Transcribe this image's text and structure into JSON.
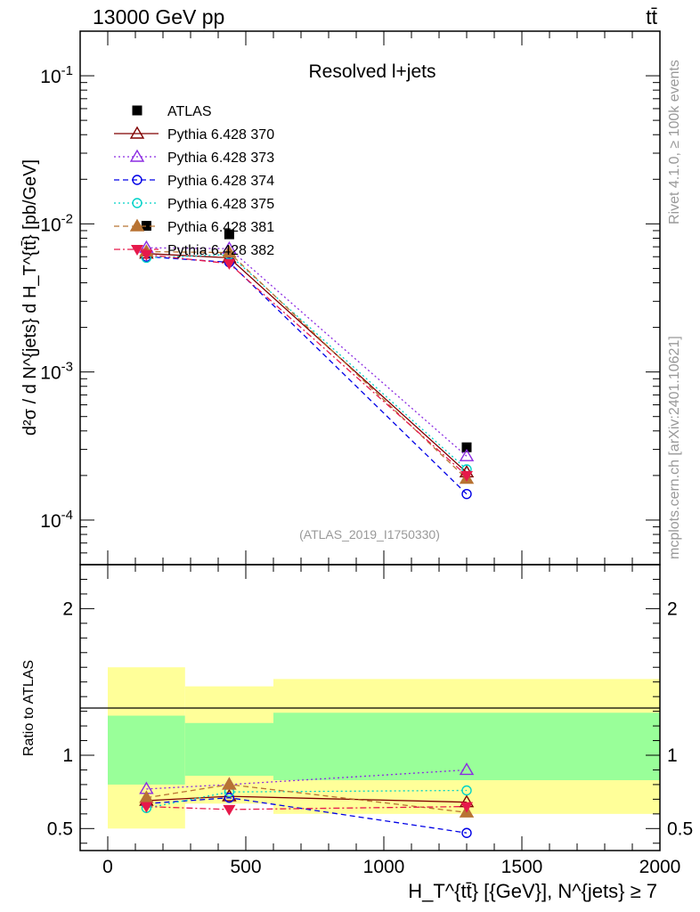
{
  "header": {
    "energy_label": "13000 GeV pp",
    "process_label": "tt̄"
  },
  "side": {
    "rivet_label": "Rivet 4.1.0, ≥ 100k events",
    "mcplots_label": "mcplots.cern.ch [arXiv:2401.10621]"
  },
  "colors": {
    "atlas": "#000000",
    "p370": "#800000",
    "p373": "#8b2be2",
    "p374": "#0000e6",
    "p375": "#00d2c8",
    "p381": "#b87333",
    "p382": "#e6194b",
    "band_outer": "#ffff99",
    "band_inner": "#99ff99"
  },
  "chart_data": [
    {
      "type": "line",
      "title": "Resolved l+jets",
      "analysis_label": "(ATLAS_2019_I1750330)",
      "ylabel": "d²σ / d N^{jets} d H_T^{tt̄} [pb/GeV]",
      "yscale": "log",
      "ylim": [
        5e-05,
        0.2
      ],
      "xlim": [
        -100,
        2000
      ],
      "y_ticks": [
        {
          "value": 0.1,
          "label": "10^-1"
        },
        {
          "value": 0.01,
          "label": "10^-2"
        },
        {
          "value": 0.001,
          "label": "10^-3"
        },
        {
          "value": 0.0001,
          "label": "10^-4"
        }
      ],
      "x": [
        140,
        440,
        1300
      ],
      "series": [
        {
          "name": "ATLAS",
          "key": "atlas",
          "marker": "square",
          "values": [
            0.0097,
            0.0085,
            0.00031
          ]
        },
        {
          "name": "Pythia 6.428 370",
          "key": "p370",
          "marker": "triangle-open",
          "line": "solid",
          "values": [
            0.0063,
            0.0059,
            0.00021
          ]
        },
        {
          "name": "Pythia 6.428 373",
          "key": "p373",
          "marker": "triangle-open",
          "line": "dotted",
          "values": [
            0.0069,
            0.0068,
            0.00027
          ]
        },
        {
          "name": "Pythia 6.428 374",
          "key": "p374",
          "marker": "circle-open",
          "line": "dashed",
          "values": [
            0.006,
            0.0055,
            0.00015
          ]
        },
        {
          "name": "Pythia 6.428 375",
          "key": "p375",
          "marker": "circle-open",
          "line": "dotted",
          "values": [
            0.0059,
            0.0062,
            0.00022
          ]
        },
        {
          "name": "Pythia 6.428 381",
          "key": "p381",
          "marker": "triangle-filled",
          "line": "dashed",
          "values": [
            0.0065,
            0.0064,
            0.00019
          ]
        },
        {
          "name": "Pythia 6.428 382",
          "key": "p382",
          "marker": "triangle-down-filled",
          "line": "dashdot",
          "values": [
            0.0062,
            0.0054,
            0.0002
          ]
        }
      ]
    },
    {
      "type": "line",
      "ylabel": "Ratio to ATLAS",
      "xlabel": "H_T^{tt̄} [{GeV}], N^{jets} ≥ 7",
      "ylim": [
        0.35,
        2.3
      ],
      "xlim": [
        -100,
        2000
      ],
      "y_ticks": [
        {
          "value": 0.5,
          "label": "0.5"
        },
        {
          "value": 1,
          "label": "1"
        },
        {
          "value": 2,
          "label": "2"
        }
      ],
      "x_ticks": [
        {
          "value": 0,
          "label": "0"
        },
        {
          "value": 500,
          "label": "500"
        },
        {
          "value": 1000,
          "label": "1000"
        },
        {
          "value": 1500,
          "label": "1500"
        },
        {
          "value": 2000,
          "label": "2000"
        }
      ],
      "x": [
        140,
        440,
        1300
      ],
      "bands": [
        {
          "x_from": 0,
          "x_to": 280,
          "outer": [
            0.5,
            1.6
          ],
          "inner": [
            0.8,
            1.27
          ]
        },
        {
          "x_from": 280,
          "x_to": 600,
          "outer": [
            0.67,
            1.47
          ],
          "inner": [
            0.86,
            1.22
          ]
        },
        {
          "x_from": 600,
          "x_to": 2000,
          "outer": [
            0.6,
            1.52
          ],
          "inner": [
            0.83,
            1.29
          ]
        }
      ],
      "series": [
        {
          "name": "Pythia 6.428 370",
          "key": "p370",
          "marker": "triangle-open",
          "line": "solid",
          "values": [
            0.69,
            0.72,
            0.68
          ]
        },
        {
          "name": "Pythia 6.428 373",
          "key": "p373",
          "marker": "triangle-open",
          "line": "dotted",
          "values": [
            0.77,
            0.8,
            0.9
          ]
        },
        {
          "name": "Pythia 6.428 374",
          "key": "p374",
          "marker": "circle-open",
          "line": "dashed",
          "values": [
            0.67,
            0.71,
            0.47
          ]
        },
        {
          "name": "Pythia 6.428 375",
          "key": "p375",
          "marker": "circle-open",
          "line": "dotted",
          "values": [
            0.64,
            0.75,
            0.76
          ]
        },
        {
          "name": "Pythia 6.428 381",
          "key": "p381",
          "marker": "triangle-filled",
          "line": "dashed",
          "values": [
            0.71,
            0.8,
            0.61
          ]
        },
        {
          "name": "Pythia 6.428 382",
          "key": "p382",
          "marker": "triangle-down-filled",
          "line": "dashdot",
          "values": [
            0.65,
            0.63,
            0.65
          ]
        }
      ]
    }
  ]
}
